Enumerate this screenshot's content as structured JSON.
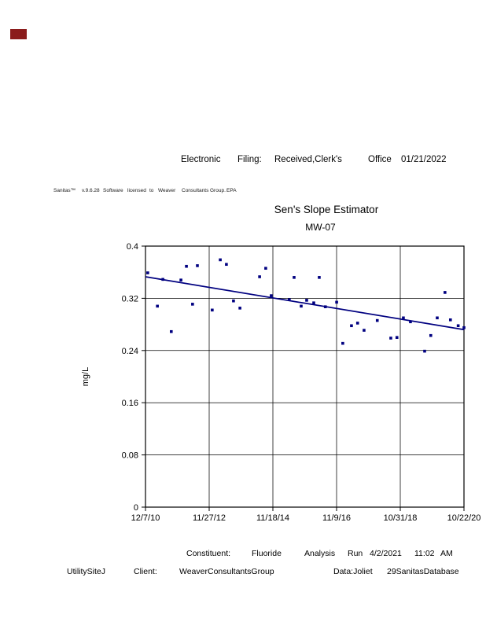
{
  "page": {
    "stamp_color": "#8b1c1c"
  },
  "header": {
    "parts": [
      "Electronic",
      "Filing:",
      "Received,Clerk's",
      "Office",
      "01/21/2022"
    ]
  },
  "license_line": {
    "parts": [
      "Sanitas™",
      "v.9.6.28",
      "Software",
      "licensed",
      "to",
      "Weaver",
      "Consultants",
      "Group.",
      "EPA"
    ]
  },
  "chart_data": {
    "type": "scatter",
    "title": "Sen's Slope Estimator",
    "subtitle": "MW-07",
    "ylabel": "mg/L",
    "ylim": [
      0,
      0.4
    ],
    "yticks": [
      0,
      0.08,
      0.16,
      0.24,
      0.32,
      0.4
    ],
    "ytick_labels": [
      "0",
      "0.08",
      "0.16",
      "0.24",
      "0.32",
      "0.4"
    ],
    "xlim": [
      2010.93,
      2020.81
    ],
    "xticks": [
      2010.93,
      2012.906,
      2014.882,
      2016.858,
      2018.834,
      2020.81
    ],
    "xtick_labels": [
      "12/7/10",
      "11/27/12",
      "11/18/14",
      "11/9/16",
      "10/31/18",
      "10/22/20"
    ],
    "grid": true,
    "legend": "none",
    "marker_color": "#000080",
    "trend_color": "#000080",
    "points": [
      [
        2011.0,
        0.359
      ],
      [
        2011.3,
        0.308
      ],
      [
        2011.47,
        0.349
      ],
      [
        2011.73,
        0.269
      ],
      [
        2012.03,
        0.348
      ],
      [
        2012.2,
        0.369
      ],
      [
        2012.39,
        0.311
      ],
      [
        2012.54,
        0.37
      ],
      [
        2013.0,
        0.302
      ],
      [
        2013.25,
        0.379
      ],
      [
        2013.44,
        0.372
      ],
      [
        2013.66,
        0.316
      ],
      [
        2013.86,
        0.305
      ],
      [
        2014.47,
        0.353
      ],
      [
        2014.66,
        0.366
      ],
      [
        2014.83,
        0.324
      ],
      [
        2015.39,
        0.318
      ],
      [
        2015.54,
        0.352
      ],
      [
        2015.76,
        0.308
      ],
      [
        2015.93,
        0.317
      ],
      [
        2016.15,
        0.313
      ],
      [
        2016.32,
        0.352
      ],
      [
        2016.51,
        0.307
      ],
      [
        2016.86,
        0.314
      ],
      [
        2017.05,
        0.251
      ],
      [
        2017.32,
        0.278
      ],
      [
        2017.51,
        0.282
      ],
      [
        2017.71,
        0.271
      ],
      [
        2018.12,
        0.286
      ],
      [
        2018.54,
        0.259
      ],
      [
        2018.73,
        0.26
      ],
      [
        2018.93,
        0.29
      ],
      [
        2019.15,
        0.284
      ],
      [
        2019.59,
        0.239
      ],
      [
        2019.78,
        0.263
      ],
      [
        2019.98,
        0.29
      ],
      [
        2020.22,
        0.329
      ],
      [
        2020.39,
        0.287
      ],
      [
        2020.63,
        0.278
      ],
      [
        2020.81,
        0.275
      ]
    ],
    "trend_line": {
      "x_start": 2010.93,
      "y_start": 0.353,
      "x_end": 2020.81,
      "y_end": 0.272
    }
  },
  "footer": {
    "line1": [
      "Constituent:",
      "Fluoride",
      "Analysis",
      "Run",
      "4/2/2021",
      "11:02",
      "AM"
    ],
    "line2": [
      "UtilitySiteJ",
      "Client:",
      "WeaverConsultantsGroup",
      "Data:Joliet",
      "29SanitasDatabase"
    ]
  }
}
